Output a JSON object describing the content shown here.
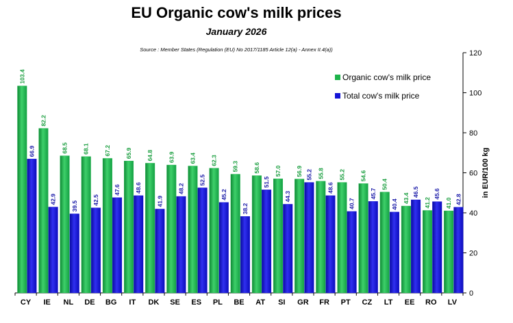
{
  "chart_data": {
    "type": "bar",
    "title": "EU Organic cow's milk  prices",
    "subtitle": "January 2026",
    "source": "Source : Member States (Regulation (EU) No 2017/1185 Article 12(a) - Annex II.4(a))",
    "ylabel": "in EUR/100 kg",
    "xlabel": "",
    "ylim": [
      0,
      120
    ],
    "yticks": [
      0,
      20,
      40,
      60,
      80,
      100,
      120
    ],
    "categories": [
      "CY",
      "IE",
      "NL",
      "DE",
      "BG",
      "IT",
      "DK",
      "SE",
      "ES",
      "PL",
      "BE",
      "AT",
      "SI",
      "GR",
      "FR",
      "PT",
      "CZ",
      "LT",
      "EE",
      "RO",
      "LV"
    ],
    "series": [
      {
        "name": "Organic cow's milk price",
        "color": "#1db34a",
        "label_color": "#1a9e3f",
        "values": [
          103.4,
          82.2,
          68.5,
          68.1,
          67.2,
          65.9,
          64.8,
          63.9,
          63.4,
          62.3,
          59.3,
          58.6,
          57.0,
          56.9,
          55.8,
          55.2,
          54.6,
          50.4,
          43.4,
          41.2,
          41.0
        ]
      },
      {
        "name": "Total cow's milk price",
        "color": "#1414d6",
        "label_color": "#1a1aa8",
        "values": [
          66.9,
          42.9,
          39.5,
          42.5,
          47.6,
          48.6,
          41.9,
          48.2,
          52.5,
          45.2,
          38.2,
          51.5,
          44.3,
          55.2,
          48.6,
          40.7,
          45.7,
          40.4,
          46.5,
          45.6,
          42.8
        ]
      }
    ],
    "legend": "top-right",
    "grid": false
  }
}
